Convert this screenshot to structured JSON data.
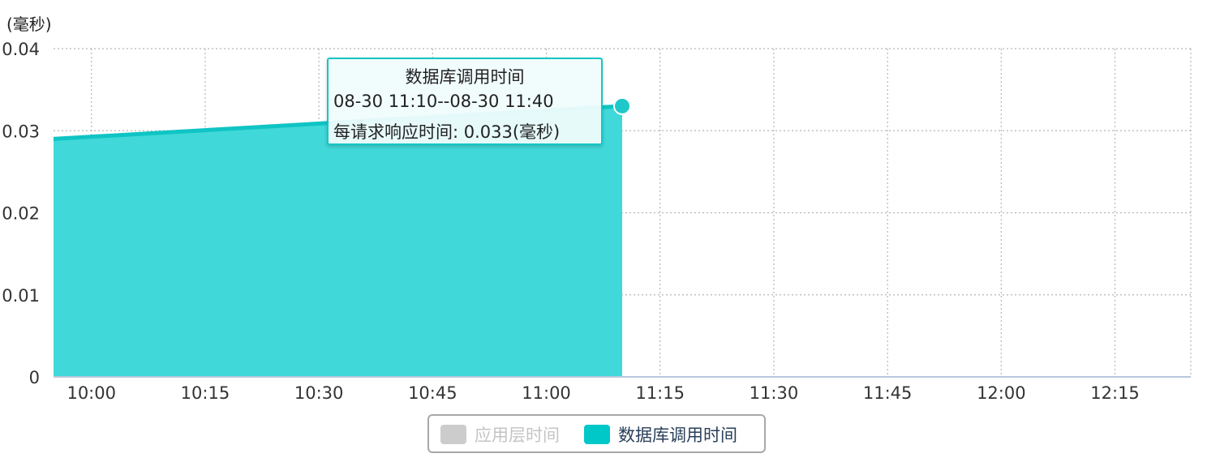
{
  "chart_data": {
    "type": "area",
    "y_unit_label": "(毫秒)",
    "y_ticks": [
      "0.04",
      "0.03",
      "0.02",
      "0.01",
      "0"
    ],
    "ylim": [
      0,
      0.04
    ],
    "x_tick_labels": [
      "10:00",
      "10:15",
      "10:30",
      "10:45",
      "11:00",
      "11:15",
      "11:30",
      "11:45",
      "12:00",
      "12:15"
    ],
    "x_range": [
      "09:55",
      "12:25"
    ],
    "grid": true,
    "series": [
      {
        "name": "应用层时间",
        "color": "#cccccc",
        "x": [],
        "values": []
      },
      {
        "name": "数据库调用时间",
        "color": "#00c8c8",
        "x": [
          "09:55",
          "11:10"
        ],
        "values": [
          0.029,
          0.033
        ]
      }
    ],
    "tooltip": {
      "title": "数据库调用时间",
      "range": "08-30 11:10--08-30 11:40",
      "value_text": "每请求响应时间:  0.033(毫秒)"
    },
    "legend_position": "bottom-center"
  }
}
